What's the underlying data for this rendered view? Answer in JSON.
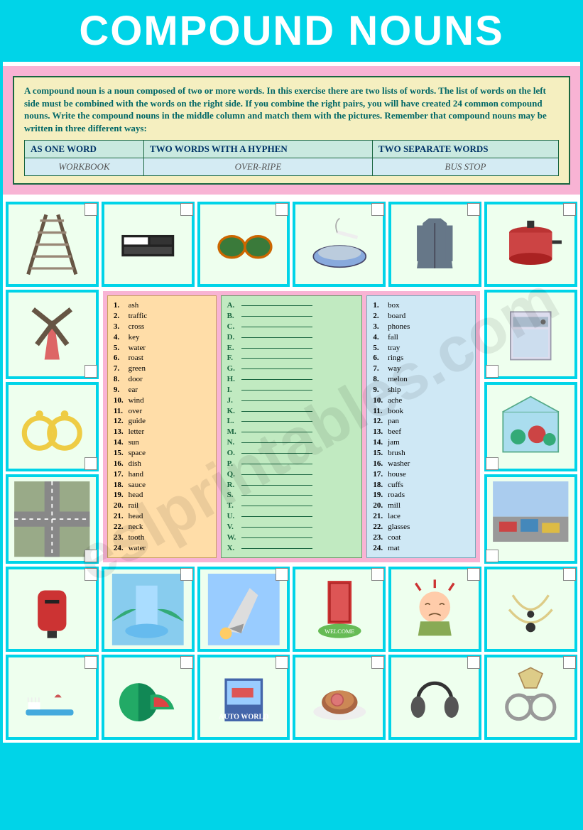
{
  "title": "COMPOUND NOUNS",
  "instructions": "A compound noun is a noun composed of two or more words. In this exercise there are two lists of words. The list of words on the left side must be combined with the words on the right side. If you combine the right pairs, you will have created 24 common compound nouns. Write the compound nouns in the middle column and match them with the pictures. Remember that compound nouns may be written in three different ways:",
  "ways": {
    "h1": "AS ONE WORD",
    "h2": "TWO WORDS WITH A HYPHEN",
    "h3": "TWO SEPARATE WORDS",
    "e1": "WORKBOOK",
    "e2": "OVER-RIPE",
    "e3": "BUS STOP"
  },
  "left": [
    "ash",
    "traffic",
    "cross",
    "key",
    "water",
    "roast",
    "green",
    "door",
    "ear",
    "wind",
    "over",
    "guide",
    "letter",
    "sun",
    "space",
    "dish",
    "hand",
    "sauce",
    "head",
    "rail",
    "head",
    "neck",
    "tooth",
    "water"
  ],
  "mid": [
    "A",
    "B",
    "C",
    "D",
    "E",
    "F",
    "G",
    "H",
    "I",
    "J",
    "K",
    "L",
    "M",
    "N",
    "O",
    "P",
    "Q",
    "R",
    "S",
    "T",
    "U",
    "V",
    "W",
    "X"
  ],
  "right": [
    "box",
    "board",
    "phones",
    "fall",
    "tray",
    "rings",
    "way",
    "melon",
    "ship",
    "ache",
    "book",
    "pan",
    "beef",
    "jam",
    "brush",
    "washer",
    "house",
    "cuffs",
    "roads",
    "mill",
    "lace",
    "glasses",
    "coat",
    "mat"
  ],
  "watermark": "eslprintables.com",
  "icons": {
    "top": [
      "railway",
      "keyboard",
      "sunglasses",
      "ashtray",
      "overcoat",
      "saucepan"
    ],
    "left_side": [
      "windmill",
      "earrings",
      "crossroads"
    ],
    "right_side": [
      "dishwasher",
      "greenhouse",
      "trafficjam"
    ],
    "bot1": [
      "letterbox",
      "waterfall",
      "spaceship",
      "doormat",
      "headache",
      "necklace"
    ],
    "bot2": [
      "toothbrush",
      "watermelon",
      "guidebook",
      "roastbeef",
      "headphones",
      "handcuffs"
    ]
  }
}
